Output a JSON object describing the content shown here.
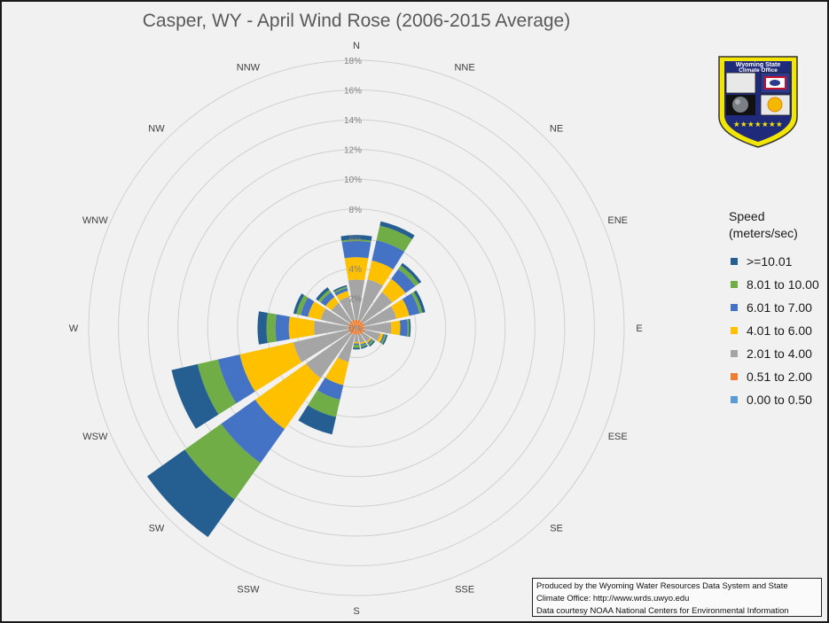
{
  "chart_data": {
    "type": "rose",
    "title": "Casper, WY - April Wind Rose (2006-2015 Average)",
    "directions": [
      "N",
      "NNE",
      "NE",
      "ENE",
      "E",
      "ESE",
      "SE",
      "SSE",
      "S",
      "SSW",
      "SW",
      "WSW",
      "W",
      "WNW",
      "NW",
      "NNW"
    ],
    "radial_axis": {
      "min": 0,
      "max": 18,
      "step": 2,
      "unit": "%",
      "ticks": [
        "0%",
        "2%",
        "4%",
        "6%",
        "8%",
        "10%",
        "12%",
        "14%",
        "16%",
        "18%"
      ]
    },
    "legend_title": [
      "Speed",
      "(meters/sec)"
    ],
    "legend_placement": "right",
    "series": [
      {
        "name": "0.00 to 0.50",
        "color": "#5b9bd5",
        "values": [
          0.05,
          0.05,
          0.05,
          0.05,
          0.05,
          0.05,
          0.05,
          0.05,
          0.05,
          0.05,
          0.05,
          0.05,
          0.05,
          0.05,
          0.05,
          0.05
        ]
      },
      {
        "name": "0.51 to 2.00",
        "color": "#ed7d31",
        "values": [
          0.5,
          0.5,
          0.5,
          0.5,
          0.5,
          0.5,
          0.5,
          0.4,
          0.4,
          0.4,
          0.5,
          0.5,
          0.5,
          0.5,
          0.5,
          0.5
        ]
      },
      {
        "name": "2.01 to 4.00",
        "color": "#a5a5a5",
        "values": [
          2.7,
          2.8,
          2.4,
          2.2,
          1.8,
          1.1,
          0.6,
          0.6,
          0.5,
          1.9,
          3.6,
          3.8,
          2.3,
          1.9,
          1.5,
          1.6
        ]
      },
      {
        "name": "4.01 to 6.00",
        "color": "#ffc000",
        "values": [
          1.5,
          1.3,
          1.1,
          0.9,
          0.6,
          0.2,
          0.1,
          0.1,
          0.1,
          1.6,
          4.2,
          3.7,
          1.7,
          0.9,
          0.5,
          0.4
        ]
      },
      {
        "name": "6.01 to 7.00",
        "color": "#4472c4",
        "values": [
          1.1,
          1.4,
          0.8,
          0.7,
          0.5,
          0.1,
          0.1,
          0.1,
          0.1,
          1.0,
          2.8,
          1.5,
          0.9,
          0.5,
          0.4,
          0.2
        ]
      },
      {
        "name": "8.01 to 10.00",
        "color": "#70ad47",
        "values": [
          0.1,
          1.0,
          0.3,
          0.2,
          0.1,
          0.1,
          0.1,
          0.1,
          0.2,
          1.2,
          3.0,
          1.4,
          0.6,
          0.3,
          0.2,
          0.1
        ]
      },
      {
        "name": ">=10.01",
        "color": "#255e91",
        "values": [
          0.3,
          0.3,
          0.2,
          0.2,
          0.1,
          0.1,
          0.1,
          0.1,
          0.1,
          1.2,
          3.1,
          1.8,
          0.6,
          0.2,
          0.2,
          0.1
        ]
      }
    ],
    "grid": true
  },
  "credits": [
    "Produced by the Wyoming Water Resources Data System and State",
    "Climate Office: http://www.wrds.uwyo.edu",
    "Data courtesy NOAA National Centers for Environmental Information"
  ],
  "logo": {
    "text_line1": "Wyoming State",
    "text_line2": "Climate Office",
    "colors": {
      "frame": "#f2e600",
      "banner": "#1f2a7a",
      "stars": "#f2e600"
    }
  }
}
